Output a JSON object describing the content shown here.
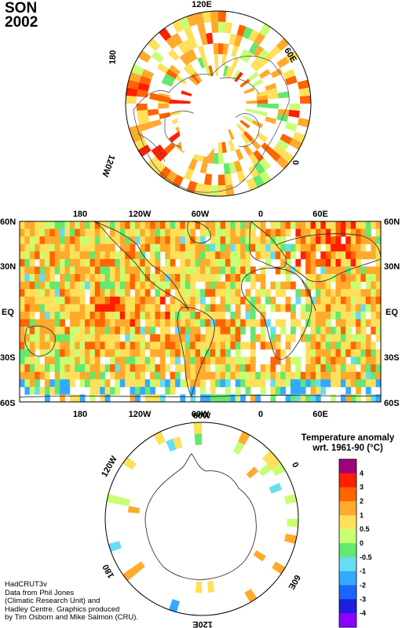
{
  "header": {
    "season": "SON",
    "year": "2002"
  },
  "north_polar_map": {
    "labels": [
      "120E",
      "60E",
      "0",
      "120W",
      "180"
    ]
  },
  "south_polar_map": {
    "labels": [
      "60W",
      "0",
      "60E",
      "120E",
      "180",
      "120W"
    ]
  },
  "global_map": {
    "top_longitude_labels": [
      "180",
      "120W",
      "60W",
      "0",
      "60E"
    ],
    "bottom_longitude_labels": [
      "180",
      "120W",
      "60W",
      "0",
      "60E"
    ],
    "latitude_labels": [
      "60N",
      "30N",
      "EQ",
      "30S",
      "60S"
    ]
  },
  "legend": {
    "title_line1": "Temperature anomaly",
    "title_line2": "wrt. 1961-90  (°C)",
    "tick_labels": [
      "4",
      "3",
      "2",
      "1",
      "0.5",
      "0",
      "-0.5",
      "-1",
      "-2",
      "-3",
      "-4"
    ],
    "colors": [
      "#a0007c",
      "#ff1e00",
      "#ff6400",
      "#ffaa2c",
      "#ffe05a",
      "#c8ff72",
      "#64e86e",
      "#66ddf2",
      "#33aaff",
      "#1c64ff",
      "#1e1edc",
      "#8c00ff"
    ]
  },
  "credits": {
    "line1": "HadCRUT3v",
    "line2": "Data from Phil Jones",
    "line3": "(Climatic Research Unit) and",
    "line4": "Hadley Centre.  Graphics produced",
    "line5": "by Tim Osborn and Mike Salmon (CRU)."
  }
}
